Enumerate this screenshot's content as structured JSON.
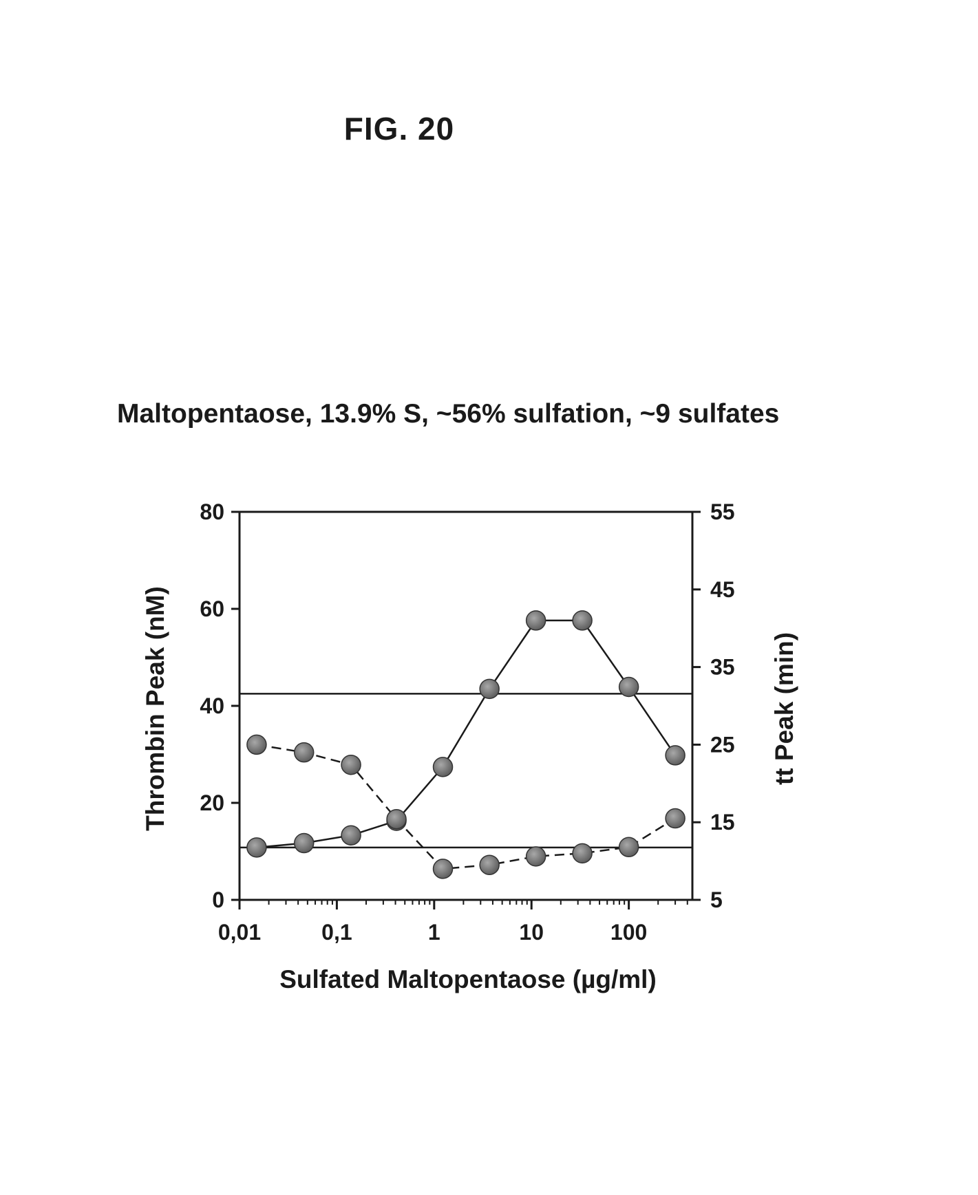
{
  "figure": {
    "label": "FIG. 20",
    "subtitle": "Maltopentaose, 13.9% S, ~56% sulfation, ~9 sulfates"
  },
  "chart_data": {
    "type": "line",
    "title": "Maltopentaose, 13.9% S, ~56% sulfation, ~9 sulfates",
    "xlabel": "Sulfated Maltopentaose (µg/ml)",
    "ylabel_left": "Thrombin Peak (nM)",
    "ylabel_right": "tt Peak (min)",
    "x_scale": "log",
    "xlim": [
      0.01,
      450
    ],
    "ylim_left": [
      0,
      80
    ],
    "ylim_right": [
      5,
      55
    ],
    "x_ticks": [
      {
        "value": 0.01,
        "label": "0,01"
      },
      {
        "value": 0.1,
        "label": "0,1"
      },
      {
        "value": 1,
        "label": "1"
      },
      {
        "value": 10,
        "label": "10"
      },
      {
        "value": 100,
        "label": "100"
      }
    ],
    "y_ticks_left": [
      0,
      20,
      40,
      60,
      80
    ],
    "y_ticks_right": [
      5,
      15,
      25,
      35,
      45,
      55
    ],
    "x": [
      0.015,
      0.046,
      0.14,
      0.41,
      1.23,
      3.7,
      11.1,
      33.3,
      100,
      300
    ],
    "series": [
      {
        "axis": "left",
        "line_style": "solid",
        "values": [
          10.8,
          11.7,
          13.3,
          16.3,
          27.4,
          43.5,
          57.6,
          57.6,
          43.9,
          29.8
        ]
      },
      {
        "axis": "right",
        "line_style": "dashed",
        "values": [
          25.0,
          24.0,
          22.4,
          15.4,
          9.0,
          9.5,
          10.6,
          11.0,
          11.8,
          15.5
        ]
      }
    ],
    "reference_lines_left": [
      42.5,
      10.8
    ],
    "grid": false,
    "legend": "none",
    "marker_color": "#7a7a7a",
    "line_color": "#1a1a1a"
  }
}
